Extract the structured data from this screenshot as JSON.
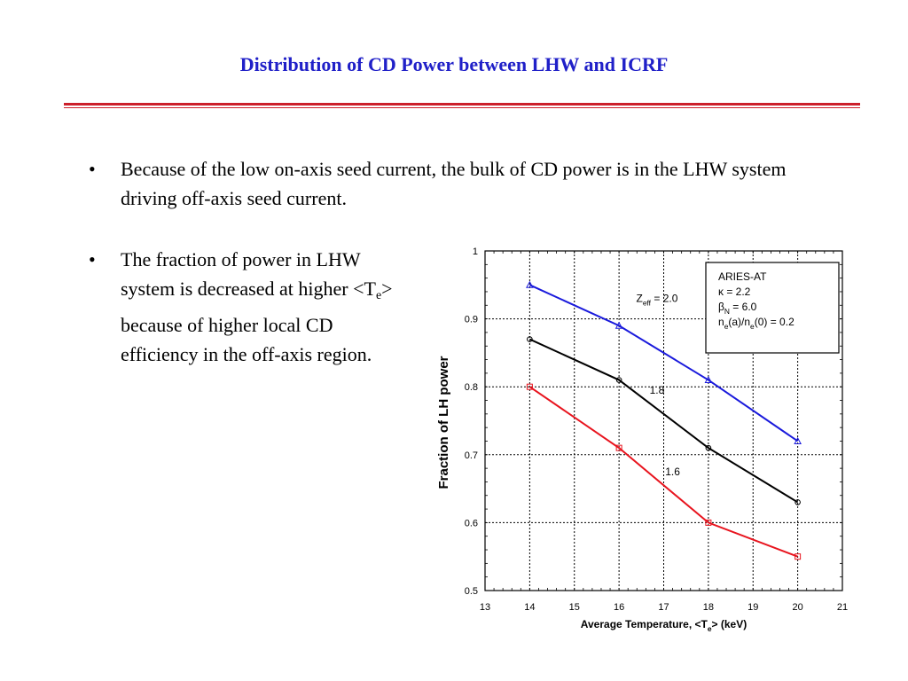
{
  "slide": {
    "title": "Distribution of CD Power between LHW and ICRF",
    "bullet1": "Because of the low on-axis seed current, the bulk of CD power is in the LHW system driving off-axis seed current.",
    "bullet2": {
      "before": "The fraction of power in LHW system is decreased at higher <T",
      "sub": "e",
      "after": "> because of higher local CD efficiency in the off-axis region."
    },
    "bullet_glyph": "•",
    "accent_colors": {
      "title": "#2020c8",
      "rule": "#cc1f2a"
    }
  },
  "chart_data": {
    "type": "line",
    "xlabel": {
      "main": "Average Temperature, <T",
      "sub": "e",
      "tail": ">  (keV)"
    },
    "ylabel": "Fraction of LH power",
    "xlim": [
      13,
      21
    ],
    "ylim": [
      0.5,
      1.0
    ],
    "xticks": [
      13,
      14,
      15,
      16,
      17,
      18,
      19,
      20,
      21
    ],
    "yticks": [
      "0.5",
      "0.6",
      "0.7",
      "0.8",
      "0.9",
      "1"
    ],
    "grid": true,
    "x": [
      14,
      16,
      18,
      20
    ],
    "series": [
      {
        "color": "#1a1adc",
        "marker": "triangle",
        "values": [
          0.95,
          0.89,
          0.81,
          0.72
        ]
      },
      {
        "color": "#000000",
        "marker": "circle",
        "values": [
          0.87,
          0.81,
          0.71,
          0.63
        ]
      },
      {
        "color": "#e8141e",
        "marker": "square",
        "values": [
          0.8,
          0.71,
          0.6,
          0.55
        ]
      }
    ],
    "annotations": [
      {
        "main": "Z",
        "sub": "eff",
        "tail": " = 2.0",
        "x": 16.85,
        "y": 0.925
      },
      {
        "main": "1.8",
        "x": 16.85,
        "y": 0.79
      },
      {
        "main": "1.6",
        "x": 17.2,
        "y": 0.67
      }
    ],
    "legend_box": {
      "position": "top-right",
      "lines": [
        {
          "main": "ARIES-AT"
        },
        {
          "main": "κ = 2.2"
        },
        {
          "main": "β",
          "sub": "N",
          "tail": " = 6.0"
        },
        {
          "main": "n",
          "sub": "e",
          "tail": "(a)/n",
          "sub2": "e",
          "tail2": "(0) = 0.2"
        }
      ]
    }
  }
}
